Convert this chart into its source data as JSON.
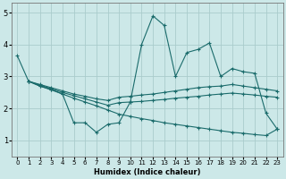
{
  "background_color": "#cce8e8",
  "grid_color": "#aacccc",
  "line_color": "#1a6b6b",
  "xlabel": "Humidex (Indice chaleur)",
  "xlim": [
    -0.5,
    23.5
  ],
  "ylim": [
    0.5,
    5.3
  ],
  "yticks": [
    1,
    2,
    3,
    4,
    5
  ],
  "xticks": [
    0,
    1,
    2,
    3,
    4,
    5,
    6,
    7,
    8,
    9,
    10,
    11,
    12,
    13,
    14,
    15,
    16,
    17,
    18,
    19,
    20,
    21,
    22,
    23
  ],
  "series": [
    {
      "x": [
        0,
        1,
        2,
        3,
        4,
        5,
        6,
        7,
        8,
        9,
        10,
        11,
        12,
        13,
        14,
        15,
        16,
        17,
        18,
        19,
        20,
        21,
        22,
        23
      ],
      "y": [
        3.65,
        2.85,
        2.7,
        2.6,
        2.45,
        1.55,
        1.55,
        1.25,
        1.5,
        1.55,
        2.2,
        4.0,
        4.9,
        4.6,
        3.0,
        3.75,
        3.85,
        4.05,
        3.0,
        3.25,
        3.15,
        3.1,
        1.85,
        1.35
      ]
    },
    {
      "x": [
        1,
        2,
        3,
        4,
        5,
        6,
        7,
        8,
        9,
        10,
        11,
        12,
        13,
        14,
        15,
        16,
        17,
        18,
        19,
        20,
        21,
        22,
        23
      ],
      "y": [
        2.85,
        2.75,
        2.65,
        2.55,
        2.45,
        2.38,
        2.3,
        2.25,
        2.35,
        2.38,
        2.42,
        2.45,
        2.5,
        2.55,
        2.6,
        2.65,
        2.68,
        2.7,
        2.75,
        2.7,
        2.65,
        2.6,
        2.55
      ]
    },
    {
      "x": [
        1,
        2,
        3,
        4,
        5,
        6,
        7,
        8,
        9,
        10,
        11,
        12,
        13,
        14,
        15,
        16,
        17,
        18,
        19,
        20,
        21,
        22,
        23
      ],
      "y": [
        2.85,
        2.73,
        2.62,
        2.5,
        2.4,
        2.3,
        2.2,
        2.1,
        2.18,
        2.2,
        2.22,
        2.25,
        2.28,
        2.32,
        2.35,
        2.38,
        2.42,
        2.45,
        2.48,
        2.45,
        2.42,
        2.38,
        2.35
      ]
    },
    {
      "x": [
        1,
        2,
        3,
        4,
        5,
        6,
        7,
        8,
        9,
        10,
        11,
        12,
        13,
        14,
        15,
        16,
        17,
        18,
        19,
        20,
        21,
        22,
        23
      ],
      "y": [
        2.85,
        2.7,
        2.58,
        2.45,
        2.32,
        2.2,
        2.08,
        1.95,
        1.82,
        1.75,
        1.68,
        1.62,
        1.55,
        1.5,
        1.45,
        1.4,
        1.35,
        1.3,
        1.25,
        1.22,
        1.18,
        1.15,
        1.35
      ]
    }
  ]
}
